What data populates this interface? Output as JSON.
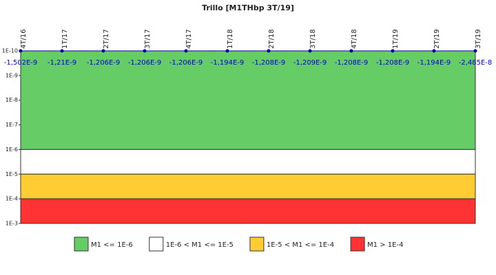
{
  "chart_data": {
    "type": "line",
    "title": "Trillo [M1THbp 3T/19]",
    "categories": [
      "4T/16",
      "1T/17",
      "2T/17",
      "3T/17",
      "4T/17",
      "1T/18",
      "2T/18",
      "3T/18",
      "4T/18",
      "1T/19",
      "2T/19",
      "3T/19"
    ],
    "series": [
      {
        "color": "#0000aa",
        "values": [
          -1.502e-09,
          -1.21e-09,
          -1.206e-09,
          -1.206e-09,
          -1.206e-09,
          -1.194e-09,
          -1.208e-09,
          -1.209e-09,
          -1.208e-09,
          -1.208e-09,
          -1.194e-09,
          -2.485e-08
        ],
        "value_labels": [
          "-1,502E-9",
          "-1,21E-9",
          "-1,206E-9",
          "-1,206E-9",
          "-1,206E-9",
          "-1,194E-9",
          "-1,208E-9",
          "-1,209E-9",
          "-1,208E-9",
          "-1,208E-9",
          "-1,194E-9",
          "-2,485E-8"
        ]
      }
    ],
    "y_scale": "log",
    "y_inverted": true,
    "ylim": [
      1e-10,
      0.001
    ],
    "yticks": [
      {
        "value": 1e-10,
        "label": "1E-10"
      },
      {
        "value": 1e-09,
        "label": "1E-9"
      },
      {
        "value": 1e-08,
        "label": "1E-8"
      },
      {
        "value": 1e-07,
        "label": "1E-7"
      },
      {
        "value": 1e-06,
        "label": "1E-6"
      },
      {
        "value": 1e-05,
        "label": "1E-5"
      },
      {
        "value": 0.0001,
        "label": "1E-4"
      },
      {
        "value": 0.001,
        "label": "1E-3"
      }
    ],
    "bands": [
      {
        "name": "M1 <= 1E-6",
        "color": "#66cc66",
        "from": 1e-10,
        "to": 1e-06
      },
      {
        "name": "1E-6 < M1 <= 1E-5",
        "color": "#ffffff",
        "from": 1e-06,
        "to": 1e-05
      },
      {
        "name": "1E-5 < M1 <= 1E-4",
        "color": "#ffcc33",
        "from": 1e-05,
        "to": 0.0001
      },
      {
        "name": "M1 > 1E-4",
        "color": "#ff3333",
        "from": 0.0001,
        "to": 0.001
      }
    ]
  }
}
